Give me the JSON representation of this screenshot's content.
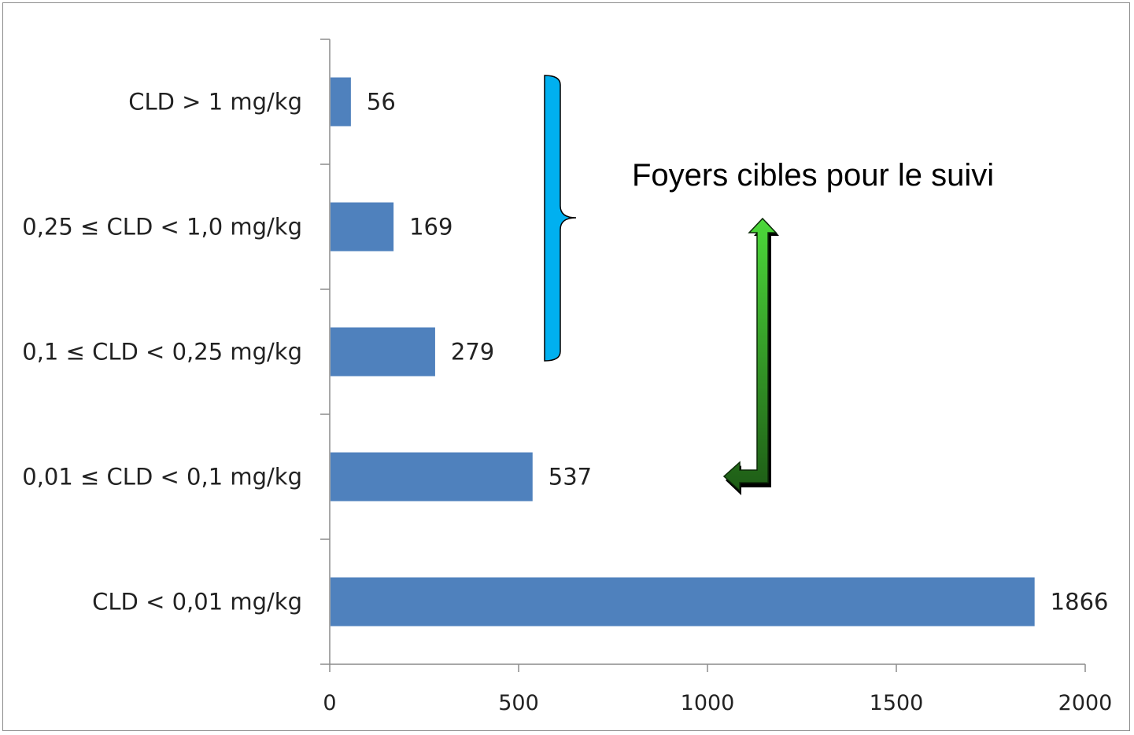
{
  "chart_data": {
    "type": "bar",
    "orientation": "horizontal",
    "categories": [
      "CLD > 1 mg/kg",
      "0,25 ≤ CLD < 1,0 mg/kg",
      "0,1 ≤ CLD < 0,25 mg/kg",
      "0,01 ≤ CLD < 0,1 mg/kg",
      "CLD <  0,01 mg/kg"
    ],
    "values": [
      56,
      169,
      279,
      537,
      1866
    ],
    "value_labels": [
      "56",
      "169",
      "279",
      "537",
      "1866"
    ],
    "xlim": [
      0,
      2000
    ],
    "xticks": [
      0,
      500,
      1000,
      1500,
      2000
    ],
    "xtick_labels": [
      "0",
      "500",
      "1000",
      "1500",
      "2000"
    ],
    "title": "",
    "xlabel": "",
    "ylabel": "",
    "grid": false,
    "legend": "none",
    "colors": {
      "bar": "#4f81bd",
      "axis": "#8c8c8c",
      "bracket": "#00b0f0",
      "arrow_light": "#4cd93a",
      "arrow_dark": "#1e5c16"
    },
    "annotations": {
      "bracket_text": "Foyers cibles pour le suivi",
      "bracket_covers_categories": [
        "CLD > 1 mg/kg",
        "0,25 ≤ CLD < 1,0 mg/kg",
        "0,1 ≤ CLD < 0,25 mg/kg"
      ],
      "arrow": "double-arrow-up-and-left"
    }
  }
}
